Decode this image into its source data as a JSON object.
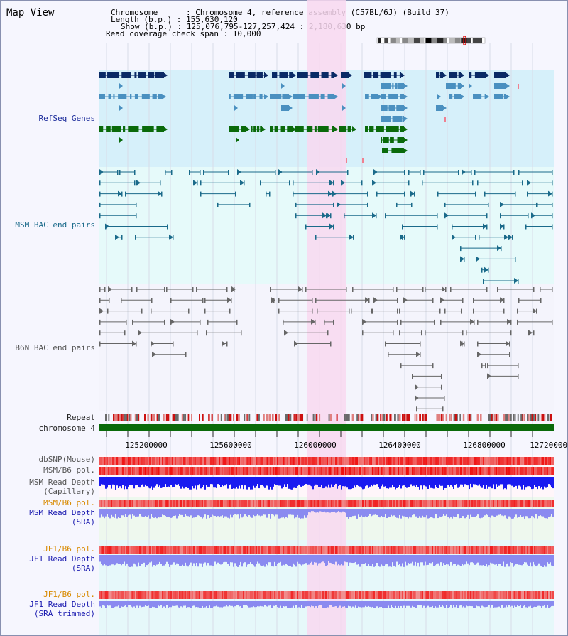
{
  "header": {
    "title": "Map View",
    "info_lines": [
      "Chromosome      : Chromosome 4, reference assembly (C57BL/6J) (Build 37)",
      "Length (b.p.) : 155,630,120",
      "Show (b.p.) : 125,076,795-127,257,424 : 2,180,630 bp",
      "Read coverage check span : 10,000"
    ]
  },
  "tracks": {
    "refseq": "RefSeq Genes",
    "msm_bac": "MSM BAC end pairs",
    "b6n_bac": "B6N BAC end pairs",
    "repeat": "Repeat",
    "chromosome": "chromosome 4",
    "dbsnp": "dbSNP(Mouse)",
    "msm_b6_pol": "MSM/B6 pol.",
    "msm_depth_cap_1": "MSM Read Depth",
    "msm_depth_cap_2": "(Capillary)",
    "msm_b6_pol_2": "MSM/B6 pol.",
    "msm_depth_sra_1": "MSM Read Depth",
    "msm_depth_sra_2": "(SRA)",
    "jf1_b6_pol": "JF1/B6 pol.",
    "jf1_depth_sra_1": "JF1 Read Depth",
    "jf1_depth_sra_2": "(SRA)",
    "jf1_b6_pol_2": "JF1/B6 pol.",
    "jf1_depth_trim_1": "JF1 Read Depth",
    "jf1_depth_trim_2": "(SRA trimmed)"
  },
  "axis": {
    "ticks": [
      "125200000",
      "125600000",
      "126000000",
      "126400000",
      "126800000",
      "127200000"
    ]
  },
  "colors": {
    "refseq_bg": "#d6f0fa",
    "msm_bg": "#e6fafa",
    "b6n_bg": "#f4f4fc",
    "highlight": "#f8d8f0",
    "gene_navy": "#0a2a66",
    "gene_lightblue": "#4a90c0",
    "gene_green": "#0a6a0a",
    "msm_line": "#1a6a8a",
    "b6n_line": "#666666",
    "chromosome_bar": "#0a6a0a",
    "depth_blue": "#1a1af0",
    "depth_light": "#8a8af0"
  }
}
